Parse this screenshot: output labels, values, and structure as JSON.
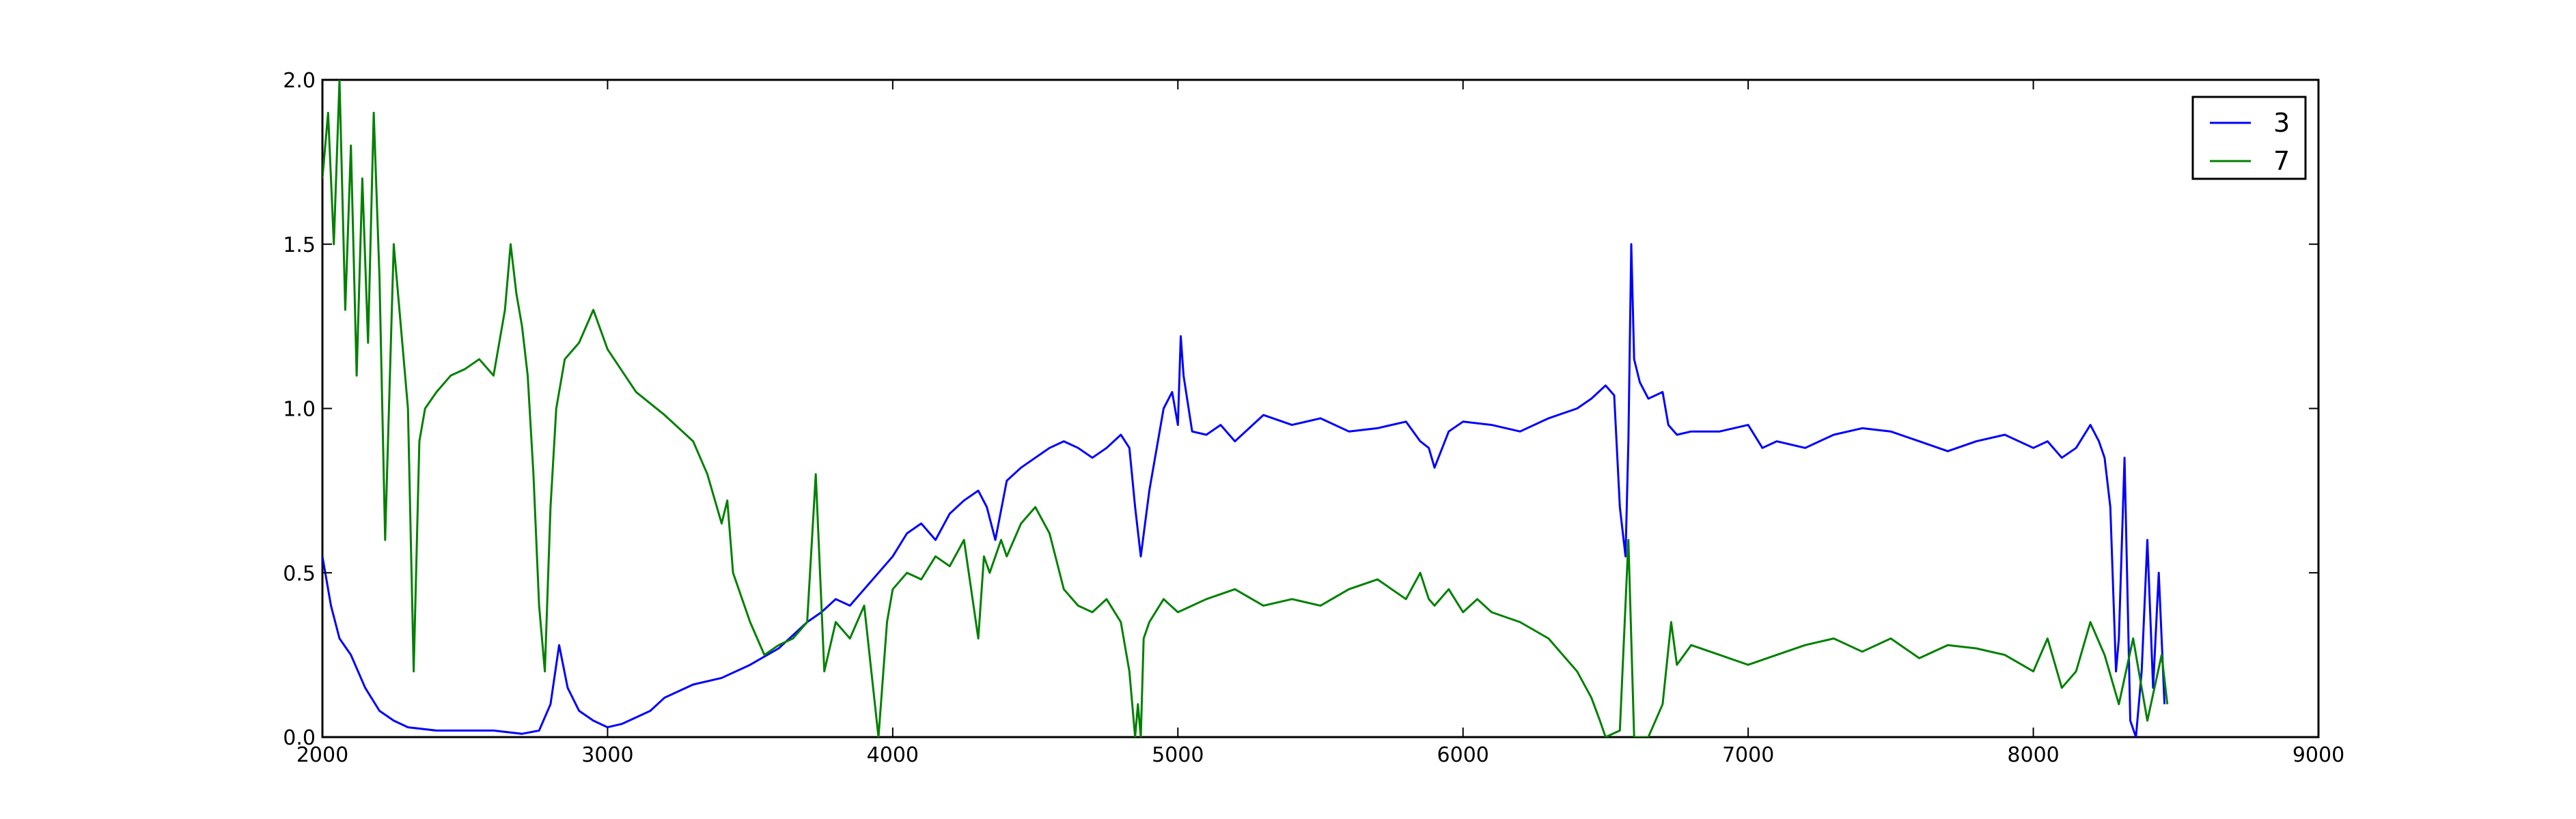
{
  "chart_data": {
    "type": "line",
    "title": "",
    "xlabel": "",
    "ylabel": "",
    "xlim": [
      2000,
      9000
    ],
    "ylim": [
      0.0,
      2.0
    ],
    "grid": false,
    "legend_position": "top-right",
    "x_ticks": [
      2000,
      3000,
      4000,
      5000,
      6000,
      7000,
      8000,
      9000
    ],
    "x_tick_labels": [
      "2000",
      "3000",
      "4000",
      "5000",
      "6000",
      "7000",
      "8000",
      "9000"
    ],
    "y_ticks": [
      0.0,
      0.5,
      1.0,
      1.5,
      2.0
    ],
    "y_tick_labels": [
      "0.0",
      "0.5",
      "1.0",
      "1.5",
      "2.0"
    ],
    "series": [
      {
        "name": "3",
        "color": "#0000ff",
        "x": [
          2000,
          2030,
          2060,
          2100,
          2150,
          2200,
          2250,
          2300,
          2400,
          2500,
          2600,
          2700,
          2760,
          2800,
          2830,
          2860,
          2900,
          2950,
          3000,
          3050,
          3100,
          3150,
          3200,
          3300,
          3400,
          3500,
          3600,
          3700,
          3750,
          3800,
          3850,
          3900,
          3950,
          4000,
          4050,
          4100,
          4150,
          4200,
          4250,
          4300,
          4330,
          4360,
          4400,
          4450,
          4500,
          4550,
          4600,
          4650,
          4700,
          4750,
          4800,
          4830,
          4850,
          4870,
          4900,
          4950,
          4980,
          5000,
          5010,
          5020,
          5050,
          5100,
          5150,
          5200,
          5300,
          5400,
          5500,
          5600,
          5700,
          5800,
          5850,
          5880,
          5900,
          5950,
          6000,
          6100,
          6200,
          6300,
          6400,
          6450,
          6500,
          6530,
          6550,
          6570,
          6580,
          6590,
          6600,
          6620,
          6650,
          6700,
          6720,
          6750,
          6800,
          6900,
          7000,
          7050,
          7100,
          7200,
          7300,
          7400,
          7500,
          7600,
          7700,
          7800,
          7900,
          8000,
          8050,
          8100,
          8150,
          8200,
          8230,
          8250,
          8270,
          8290,
          8300,
          8320,
          8340,
          8360,
          8380,
          8400,
          8420,
          8440,
          8460
        ],
        "y": [
          0.55,
          0.4,
          0.3,
          0.25,
          0.15,
          0.08,
          0.05,
          0.03,
          0.02,
          0.02,
          0.02,
          0.01,
          0.02,
          0.1,
          0.28,
          0.15,
          0.08,
          0.05,
          0.03,
          0.04,
          0.06,
          0.08,
          0.12,
          0.16,
          0.18,
          0.22,
          0.27,
          0.35,
          0.38,
          0.42,
          0.4,
          0.45,
          0.5,
          0.55,
          0.62,
          0.65,
          0.6,
          0.68,
          0.72,
          0.75,
          0.7,
          0.6,
          0.78,
          0.82,
          0.85,
          0.88,
          0.9,
          0.88,
          0.85,
          0.88,
          0.92,
          0.88,
          0.7,
          0.55,
          0.75,
          1.0,
          1.05,
          0.95,
          1.22,
          1.1,
          0.93,
          0.92,
          0.95,
          0.9,
          0.98,
          0.95,
          0.97,
          0.93,
          0.94,
          0.96,
          0.9,
          0.88,
          0.82,
          0.93,
          0.96,
          0.95,
          0.93,
          0.97,
          1.0,
          1.03,
          1.07,
          1.04,
          0.7,
          0.55,
          0.9,
          1.5,
          1.15,
          1.08,
          1.03,
          1.05,
          0.95,
          0.92,
          0.93,
          0.93,
          0.95,
          0.88,
          0.9,
          0.88,
          0.92,
          0.94,
          0.93,
          0.9,
          0.87,
          0.9,
          0.92,
          0.88,
          0.9,
          0.85,
          0.88,
          0.95,
          0.9,
          0.85,
          0.7,
          0.2,
          0.3,
          0.85,
          0.05,
          0.0,
          0.2,
          0.6,
          0.15,
          0.5,
          0.1
        ]
      },
      {
        "name": "7",
        "color": "#008000",
        "x": [
          2000,
          2020,
          2040,
          2060,
          2080,
          2100,
          2120,
          2140,
          2160,
          2180,
          2200,
          2220,
          2250,
          2280,
          2300,
          2320,
          2340,
          2360,
          2400,
          2450,
          2500,
          2550,
          2600,
          2640,
          2660,
          2680,
          2700,
          2720,
          2740,
          2760,
          2780,
          2800,
          2820,
          2850,
          2900,
          2950,
          3000,
          3100,
          3200,
          3300,
          3350,
          3400,
          3420,
          3440,
          3460,
          3500,
          3550,
          3600,
          3650,
          3700,
          3730,
          3760,
          3800,
          3850,
          3900,
          3950,
          3980,
          4000,
          4050,
          4100,
          4150,
          4200,
          4250,
          4300,
          4320,
          4340,
          4380,
          4400,
          4450,
          4500,
          4550,
          4600,
          4650,
          4700,
          4750,
          4800,
          4830,
          4850,
          4860,
          4870,
          4880,
          4900,
          4950,
          5000,
          5050,
          5100,
          5200,
          5300,
          5400,
          5500,
          5600,
          5700,
          5800,
          5850,
          5880,
          5900,
          5950,
          6000,
          6050,
          6100,
          6200,
          6300,
          6400,
          6450,
          6480,
          6500,
          6550,
          6580,
          6600,
          6650,
          6700,
          6730,
          6750,
          6800,
          6900,
          7000,
          7100,
          7200,
          7300,
          7400,
          7500,
          7600,
          7700,
          7800,
          7900,
          8000,
          8050,
          8100,
          8150,
          8200,
          8250,
          8300,
          8350,
          8400,
          8450,
          8470
        ],
        "y": [
          1.7,
          1.9,
          1.5,
          2.0,
          1.3,
          1.8,
          1.1,
          1.7,
          1.2,
          1.9,
          1.4,
          0.6,
          1.5,
          1.2,
          1.0,
          0.2,
          0.9,
          1.0,
          1.05,
          1.1,
          1.12,
          1.15,
          1.1,
          1.3,
          1.5,
          1.35,
          1.25,
          1.1,
          0.8,
          0.4,
          0.2,
          0.7,
          1.0,
          1.15,
          1.2,
          1.3,
          1.18,
          1.05,
          0.98,
          0.9,
          0.8,
          0.65,
          0.72,
          0.5,
          0.45,
          0.35,
          0.25,
          0.28,
          0.3,
          0.35,
          0.8,
          0.2,
          0.35,
          0.3,
          0.4,
          0.0,
          0.35,
          0.45,
          0.5,
          0.48,
          0.55,
          0.52,
          0.6,
          0.3,
          0.55,
          0.5,
          0.6,
          0.55,
          0.65,
          0.7,
          0.62,
          0.45,
          0.4,
          0.38,
          0.42,
          0.35,
          0.2,
          0.0,
          0.1,
          0.0,
          0.3,
          0.35,
          0.42,
          0.38,
          0.4,
          0.42,
          0.45,
          0.4,
          0.42,
          0.4,
          0.45,
          0.48,
          0.42,
          0.5,
          0.42,
          0.4,
          0.45,
          0.38,
          0.42,
          0.38,
          0.35,
          0.3,
          0.2,
          0.12,
          0.05,
          0.0,
          0.02,
          0.6,
          0.0,
          0.0,
          0.1,
          0.35,
          0.22,
          0.28,
          0.25,
          0.22,
          0.25,
          0.28,
          0.3,
          0.26,
          0.3,
          0.24,
          0.28,
          0.27,
          0.25,
          0.2,
          0.3,
          0.15,
          0.2,
          0.35,
          0.25,
          0.1,
          0.3,
          0.05,
          0.25,
          0.1
        ]
      }
    ]
  }
}
